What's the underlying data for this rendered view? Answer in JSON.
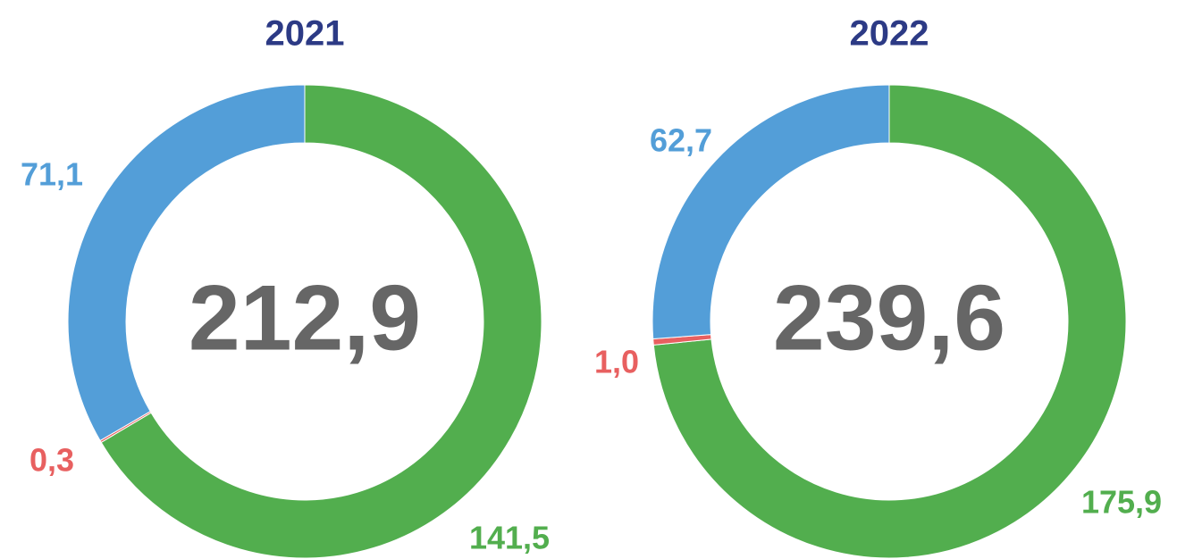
{
  "chart_data": [
    {
      "type": "pie",
      "title": "2021",
      "values": [
        141.5,
        0.3,
        71.1
      ],
      "value_labels": [
        "141,5",
        "0,3",
        "71,1"
      ],
      "colors": [
        "#52ae4e",
        "#e86060",
        "#539ed8"
      ],
      "total": 212.9,
      "total_label": "212,9"
    },
    {
      "type": "pie",
      "title": "2022",
      "values": [
        175.9,
        1.0,
        62.7
      ],
      "value_labels": [
        "175,9",
        "1,0",
        "62,7"
      ],
      "colors": [
        "#52ae4e",
        "#e86060",
        "#539ed8"
      ],
      "total": 239.6,
      "total_label": "239,6"
    }
  ]
}
